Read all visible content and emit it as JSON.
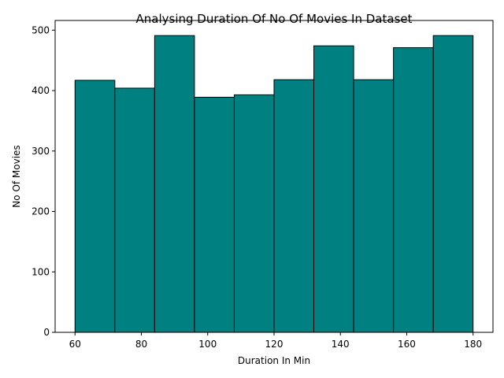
{
  "chart_data": {
    "type": "bar",
    "subtype": "histogram",
    "title": "Analysing Duration Of No Of Movies In Dataset",
    "xlabel": "Duration In Min",
    "ylabel": "No Of Movies",
    "bin_edges": [
      60,
      72,
      84,
      96,
      108,
      120,
      132,
      144,
      156,
      168,
      180
    ],
    "values": [
      417,
      404,
      491,
      389,
      393,
      418,
      474,
      418,
      471,
      491
    ],
    "xlim": [
      54,
      186
    ],
    "ylim": [
      0,
      516
    ],
    "xticks": [
      60,
      80,
      100,
      120,
      140,
      160,
      180
    ],
    "yticks": [
      0,
      100,
      200,
      300,
      400,
      500
    ],
    "bar_color": "#008080",
    "edge_color": "#000000",
    "grid": false,
    "legend": false
  }
}
